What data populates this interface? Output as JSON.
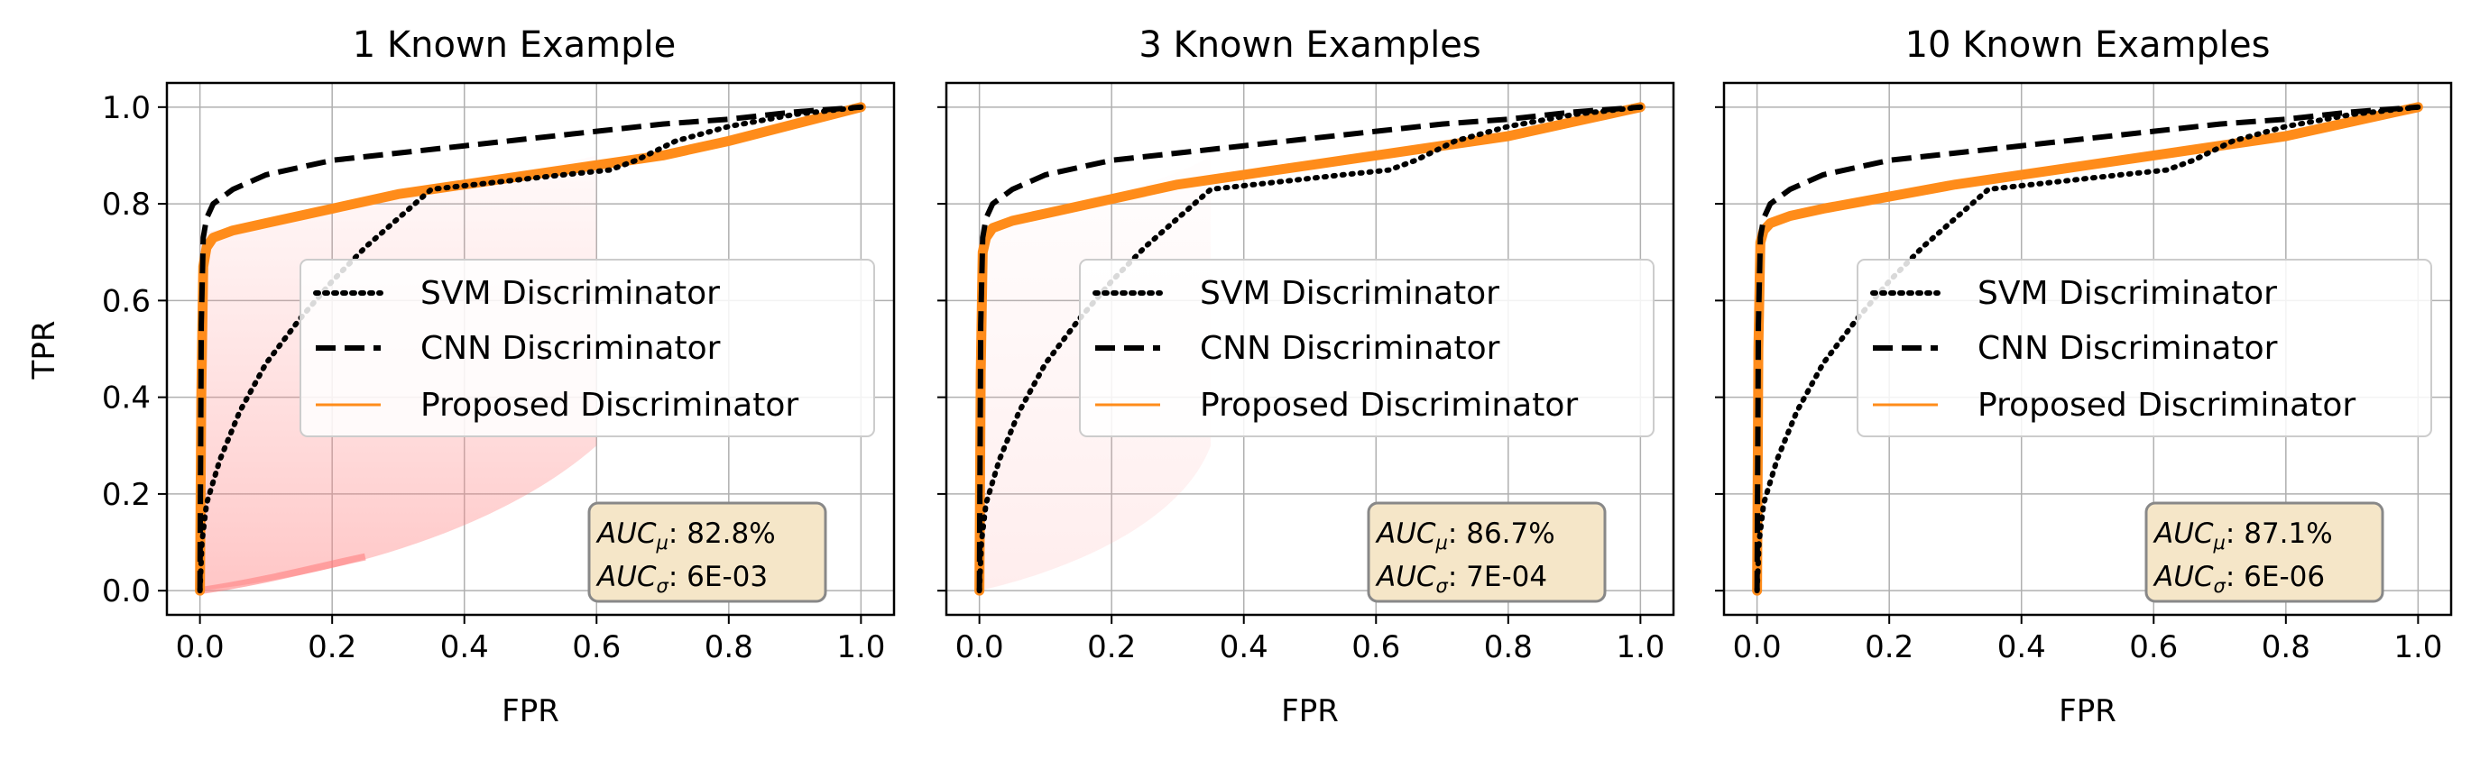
{
  "chart_data": [
    {
      "type": "line",
      "title": "1 Known Example",
      "xlabel": "FPR",
      "ylabel": "TPR",
      "xlim": [
        -0.05,
        1.05
      ],
      "ylim": [
        -0.05,
        1.05
      ],
      "x_ticks": [
        "0.0",
        "0.2",
        "0.4",
        "0.6",
        "0.8",
        "1.0"
      ],
      "y_ticks": [
        "0.0",
        "0.2",
        "0.4",
        "0.6",
        "0.8",
        "1.0"
      ],
      "grid": true,
      "legend_position": "center-right",
      "legend": [
        "SVM Discriminator",
        "CNN Discriminator",
        "Proposed Discriminator"
      ],
      "auc_mu_label": "AUC",
      "auc_mu_sub": "μ",
      "auc_mu_value": ": 82.8%",
      "auc_sigma_label": "AUC",
      "auc_sigma_sub": "σ",
      "auc_sigma_value": ": 6E-03",
      "series": [
        {
          "name": "SVM Discriminator",
          "style": "dotted",
          "color": "#000000",
          "x": [
            0,
            0.003,
            0.01,
            0.03,
            0.06,
            0.1,
            0.15,
            0.2,
            0.25,
            0.3,
            0.35,
            0.45,
            0.55,
            0.62,
            0.66,
            0.72,
            0.8,
            0.9,
            1.0
          ],
          "y": [
            0,
            0.1,
            0.18,
            0.27,
            0.37,
            0.47,
            0.56,
            0.64,
            0.71,
            0.77,
            0.83,
            0.845,
            0.86,
            0.87,
            0.89,
            0.93,
            0.96,
            0.985,
            1.0
          ]
        },
        {
          "name": "CNN Discriminator",
          "style": "dashed",
          "color": "#000000",
          "x": [
            0,
            0.002,
            0.005,
            0.01,
            0.02,
            0.05,
            0.1,
            0.2,
            0.3,
            0.4,
            0.5,
            0.6,
            0.7,
            0.8,
            0.9,
            1.0
          ],
          "y": [
            0,
            0.55,
            0.73,
            0.77,
            0.8,
            0.83,
            0.86,
            0.89,
            0.905,
            0.92,
            0.935,
            0.95,
            0.965,
            0.975,
            0.99,
            1.0
          ]
        },
        {
          "name": "Proposed Discriminator",
          "style": "solid",
          "color": "#ff8c1a",
          "x": [
            0,
            0.002,
            0.005,
            0.01,
            0.02,
            0.05,
            0.1,
            0.2,
            0.3,
            0.4,
            0.5,
            0.6,
            0.7,
            0.8,
            0.9,
            1.0
          ],
          "y": [
            0,
            0.4,
            0.67,
            0.71,
            0.73,
            0.745,
            0.76,
            0.79,
            0.82,
            0.84,
            0.86,
            0.88,
            0.9,
            0.93,
            0.965,
            1.0
          ]
        }
      ]
    },
    {
      "type": "line",
      "title": "3 Known Examples",
      "xlabel": "FPR",
      "ylabel": "",
      "xlim": [
        -0.05,
        1.05
      ],
      "ylim": [
        -0.05,
        1.05
      ],
      "x_ticks": [
        "0.0",
        "0.2",
        "0.4",
        "0.6",
        "0.8",
        "1.0"
      ],
      "y_ticks": [],
      "grid": true,
      "legend_position": "center-right",
      "legend": [
        "SVM Discriminator",
        "CNN Discriminator",
        "Proposed Discriminator"
      ],
      "auc_mu_label": "AUC",
      "auc_mu_sub": "μ",
      "auc_mu_value": ": 86.7%",
      "auc_sigma_label": "AUC",
      "auc_sigma_sub": "σ",
      "auc_sigma_value": ": 7E-04",
      "series": [
        {
          "name": "SVM Discriminator",
          "style": "dotted",
          "color": "#000000",
          "x": [
            0,
            0.003,
            0.01,
            0.03,
            0.06,
            0.1,
            0.15,
            0.2,
            0.25,
            0.3,
            0.35,
            0.45,
            0.55,
            0.62,
            0.66,
            0.72,
            0.8,
            0.9,
            1.0
          ],
          "y": [
            0,
            0.1,
            0.18,
            0.27,
            0.37,
            0.47,
            0.56,
            0.64,
            0.71,
            0.77,
            0.83,
            0.845,
            0.86,
            0.87,
            0.89,
            0.93,
            0.96,
            0.985,
            1.0
          ]
        },
        {
          "name": "CNN Discriminator",
          "style": "dashed",
          "color": "#000000",
          "x": [
            0,
            0.002,
            0.005,
            0.01,
            0.02,
            0.05,
            0.1,
            0.2,
            0.3,
            0.4,
            0.5,
            0.6,
            0.7,
            0.8,
            0.9,
            1.0
          ],
          "y": [
            0,
            0.55,
            0.73,
            0.77,
            0.8,
            0.83,
            0.86,
            0.89,
            0.905,
            0.92,
            0.935,
            0.95,
            0.965,
            0.975,
            0.99,
            1.0
          ]
        },
        {
          "name": "Proposed Discriminator",
          "style": "solid",
          "color": "#ff8c1a",
          "x": [
            0,
            0.002,
            0.005,
            0.01,
            0.02,
            0.05,
            0.1,
            0.2,
            0.3,
            0.4,
            0.5,
            0.6,
            0.7,
            0.8,
            0.9,
            1.0
          ],
          "y": [
            0,
            0.45,
            0.7,
            0.73,
            0.75,
            0.765,
            0.78,
            0.81,
            0.84,
            0.86,
            0.88,
            0.9,
            0.92,
            0.94,
            0.97,
            1.0
          ]
        }
      ]
    },
    {
      "type": "line",
      "title": "10 Known Examples",
      "xlabel": "FPR",
      "ylabel": "",
      "xlim": [
        -0.05,
        1.05
      ],
      "ylim": [
        -0.05,
        1.05
      ],
      "x_ticks": [
        "0.0",
        "0.2",
        "0.4",
        "0.6",
        "0.8",
        "1.0"
      ],
      "y_ticks": [],
      "grid": true,
      "legend_position": "center-right",
      "legend": [
        "SVM Discriminator",
        "CNN Discriminator",
        "Proposed Discriminator"
      ],
      "auc_mu_label": "AUC",
      "auc_mu_sub": "μ",
      "auc_mu_value": ": 87.1%",
      "auc_sigma_label": "AUC",
      "auc_sigma_sub": "σ",
      "auc_sigma_value": ": 6E-06",
      "series": [
        {
          "name": "SVM Discriminator",
          "style": "dotted",
          "color": "#000000",
          "x": [
            0,
            0.003,
            0.01,
            0.03,
            0.06,
            0.1,
            0.15,
            0.2,
            0.25,
            0.3,
            0.35,
            0.45,
            0.55,
            0.62,
            0.66,
            0.72,
            0.8,
            0.9,
            1.0
          ],
          "y": [
            0,
            0.1,
            0.18,
            0.27,
            0.37,
            0.47,
            0.56,
            0.64,
            0.71,
            0.77,
            0.83,
            0.845,
            0.86,
            0.87,
            0.89,
            0.93,
            0.96,
            0.985,
            1.0
          ]
        },
        {
          "name": "CNN Discriminator",
          "style": "dashed",
          "color": "#000000",
          "x": [
            0,
            0.002,
            0.005,
            0.01,
            0.02,
            0.05,
            0.1,
            0.2,
            0.3,
            0.4,
            0.5,
            0.6,
            0.7,
            0.8,
            0.9,
            1.0
          ],
          "y": [
            0,
            0.55,
            0.73,
            0.77,
            0.8,
            0.83,
            0.86,
            0.89,
            0.905,
            0.92,
            0.935,
            0.95,
            0.965,
            0.975,
            0.99,
            1.0
          ]
        },
        {
          "name": "Proposed Discriminator",
          "style": "solid",
          "color": "#ff8c1a",
          "x": [
            0,
            0.002,
            0.005,
            0.01,
            0.02,
            0.05,
            0.1,
            0.2,
            0.3,
            0.4,
            0.5,
            0.6,
            0.7,
            0.8,
            0.9,
            1.0
          ],
          "y": [
            0,
            0.5,
            0.72,
            0.745,
            0.76,
            0.775,
            0.79,
            0.815,
            0.84,
            0.86,
            0.88,
            0.9,
            0.92,
            0.94,
            0.97,
            1.0
          ]
        }
      ]
    }
  ]
}
